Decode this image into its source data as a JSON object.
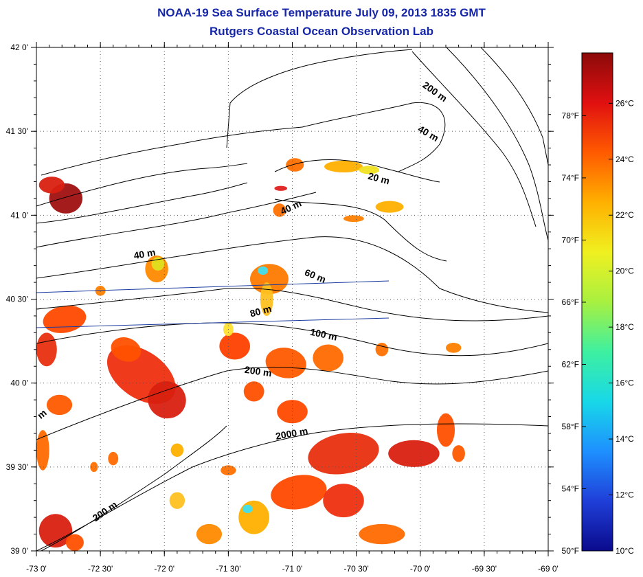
{
  "title": "NOAA-19 Sea Surface Temperature July 09, 2013 1835 GMT",
  "subtitle": "Rutgers Coastal Ocean Observation Lab",
  "axes": {
    "x_ticks": [
      "-73 0'",
      "-72 30'",
      "-72 0'",
      "-71 30'",
      "-71 0'",
      "-70 30'",
      "-70 0'",
      "-69 30'",
      "-69 0'"
    ],
    "y_ticks": [
      "39 0'",
      "39 30'",
      "40 0'",
      "40 30'",
      "41 0'",
      "41 30'",
      "42 0'"
    ],
    "lon_range": [
      -73,
      -69
    ],
    "lat_range": [
      39,
      42
    ]
  },
  "colorbar": {
    "c_labels": [
      "10°C",
      "12°C",
      "14°C",
      "16°C",
      "18°C",
      "20°C",
      "22°C",
      "24°C",
      "26°C"
    ],
    "f_labels": [
      "50°F",
      "54°F",
      "58°F",
      "62°F",
      "66°F",
      "70°F",
      "74°F",
      "78°F"
    ],
    "range_c": [
      10,
      27.8
    ],
    "colors": [
      "#0a0a8c",
      "#1f3fd8",
      "#1e90ff",
      "#18d8e8",
      "#3ef0a0",
      "#a8f040",
      "#f0f020",
      "#ffb000",
      "#ff5a00",
      "#e01010",
      "#8b0a0a"
    ]
  },
  "contour_labels": [
    {
      "text": "200 m",
      "lon": -69.9,
      "lat": 41.72,
      "angle": 35
    },
    {
      "text": "40 m",
      "lon": -69.95,
      "lat": 41.47,
      "angle": 30
    },
    {
      "text": "20 m",
      "lon": -70.33,
      "lat": 41.2,
      "angle": 15
    },
    {
      "text": "40 m",
      "lon": -71.0,
      "lat": 41.03,
      "angle": -25
    },
    {
      "text": "40 m",
      "lon": -72.15,
      "lat": 40.75,
      "angle": -10
    },
    {
      "text": "60 m",
      "lon": -70.83,
      "lat": 40.62,
      "angle": 22
    },
    {
      "text": "80 m",
      "lon": -71.24,
      "lat": 40.41,
      "angle": -15
    },
    {
      "text": "100 m",
      "lon": -70.76,
      "lat": 40.27,
      "angle": 12
    },
    {
      "text": "200 m",
      "lon": -71.27,
      "lat": 40.05,
      "angle": 8
    },
    {
      "text": "2000 m",
      "lon": -71.0,
      "lat": 39.68,
      "angle": -10
    },
    {
      "text": "200 m",
      "lon": -72.45,
      "lat": 39.22,
      "angle": -35
    },
    {
      "text": "m",
      "lon": -72.94,
      "lat": 39.8,
      "angle": -40
    }
  ],
  "sst_patches": [
    {
      "color": "#a01010",
      "lon": -72.77,
      "lat": 41.1,
      "rx": 0.13,
      "ry": 0.09,
      "rot": 0
    },
    {
      "color": "#d82010",
      "lon": -72.88,
      "lat": 41.18,
      "rx": 0.1,
      "ry": 0.05,
      "rot": 0
    },
    {
      "color": "#ff8a00",
      "lon": -72.06,
      "lat": 40.68,
      "rx": 0.09,
      "ry": 0.08,
      "rot": 0
    },
    {
      "color": "#e0e020",
      "lon": -72.05,
      "lat": 40.71,
      "rx": 0.05,
      "ry": 0.04,
      "rot": 0
    },
    {
      "color": "#ff7a00",
      "lon": -71.18,
      "lat": 40.62,
      "rx": 0.15,
      "ry": 0.09,
      "rot": 0
    },
    {
      "color": "#ffc020",
      "lon": -71.2,
      "lat": 40.5,
      "rx": 0.05,
      "ry": 0.1,
      "rot": 0
    },
    {
      "color": "#40e0f0",
      "lon": -71.23,
      "lat": 40.67,
      "rx": 0.04,
      "ry": 0.025,
      "rot": 0
    },
    {
      "color": "#ff7000",
      "lon": -70.98,
      "lat": 41.3,
      "rx": 0.07,
      "ry": 0.04,
      "rot": 0
    },
    {
      "color": "#ffb000",
      "lon": -70.6,
      "lat": 41.29,
      "rx": 0.15,
      "ry": 0.035,
      "rot": 0
    },
    {
      "color": "#f0e020",
      "lon": -70.4,
      "lat": 41.27,
      "rx": 0.08,
      "ry": 0.025,
      "rot": 0
    },
    {
      "color": "#e02020",
      "lon": -71.09,
      "lat": 41.16,
      "rx": 0.05,
      "ry": 0.015,
      "rot": 0
    },
    {
      "color": "#ff7000",
      "lon": -71.1,
      "lat": 41.03,
      "rx": 0.05,
      "ry": 0.04,
      "rot": 0
    },
    {
      "color": "#ffb000",
      "lon": -70.24,
      "lat": 41.05,
      "rx": 0.11,
      "ry": 0.035,
      "rot": 0
    },
    {
      "color": "#ff8000",
      "lon": -70.52,
      "lat": 40.98,
      "rx": 0.08,
      "ry": 0.02,
      "rot": 0
    },
    {
      "color": "#ff4a00",
      "lon": -72.78,
      "lat": 40.38,
      "rx": 0.17,
      "ry": 0.08,
      "rot": -10
    },
    {
      "color": "#e83010",
      "lon": -72.92,
      "lat": 40.2,
      "rx": 0.08,
      "ry": 0.1,
      "rot": 0
    },
    {
      "color": "#ee3010",
      "lon": -72.18,
      "lat": 40.05,
      "rx": 0.3,
      "ry": 0.14,
      "rot": 35
    },
    {
      "color": "#d82010",
      "lon": -71.98,
      "lat": 39.9,
      "rx": 0.15,
      "ry": 0.11,
      "rot": 25
    },
    {
      "color": "#ff5000",
      "lon": -72.3,
      "lat": 40.2,
      "rx": 0.12,
      "ry": 0.07,
      "rot": 20
    },
    {
      "color": "#ff5a00",
      "lon": -72.82,
      "lat": 39.87,
      "rx": 0.1,
      "ry": 0.06,
      "rot": 0
    },
    {
      "color": "#ff6a00",
      "lon": -72.95,
      "lat": 39.6,
      "rx": 0.05,
      "ry": 0.12,
      "rot": 0
    },
    {
      "color": "#ff4000",
      "lon": -71.45,
      "lat": 40.22,
      "rx": 0.12,
      "ry": 0.08,
      "rot": 0
    },
    {
      "color": "#ff5a00",
      "lon": -71.05,
      "lat": 40.12,
      "rx": 0.16,
      "ry": 0.09,
      "rot": 10
    },
    {
      "color": "#ff6a00",
      "lon": -70.72,
      "lat": 40.15,
      "rx": 0.12,
      "ry": 0.08,
      "rot": 0
    },
    {
      "color": "#ff5000",
      "lon": -71.3,
      "lat": 39.95,
      "rx": 0.08,
      "ry": 0.06,
      "rot": 0
    },
    {
      "color": "#ff7000",
      "lon": -70.3,
      "lat": 40.2,
      "rx": 0.05,
      "ry": 0.04,
      "rot": 0
    },
    {
      "color": "#ff8000",
      "lon": -69.74,
      "lat": 40.21,
      "rx": 0.06,
      "ry": 0.03,
      "rot": 0
    },
    {
      "color": "#ff4a00",
      "lon": -71.0,
      "lat": 39.83,
      "rx": 0.12,
      "ry": 0.07,
      "rot": 0
    },
    {
      "color": "#e83010",
      "lon": -70.6,
      "lat": 39.58,
      "rx": 0.28,
      "ry": 0.12,
      "rot": -10
    },
    {
      "color": "#d82010",
      "lon": -70.05,
      "lat": 39.58,
      "rx": 0.2,
      "ry": 0.08,
      "rot": 0
    },
    {
      "color": "#ff5000",
      "lon": -69.8,
      "lat": 39.72,
      "rx": 0.07,
      "ry": 0.1,
      "rot": 0
    },
    {
      "color": "#ff5a00",
      "lon": -69.7,
      "lat": 39.58,
      "rx": 0.05,
      "ry": 0.05,
      "rot": 0
    },
    {
      "color": "#ff4a00",
      "lon": -70.95,
      "lat": 39.35,
      "rx": 0.22,
      "ry": 0.1,
      "rot": -10
    },
    {
      "color": "#ee3010",
      "lon": -70.6,
      "lat": 39.3,
      "rx": 0.16,
      "ry": 0.1,
      "rot": 0
    },
    {
      "color": "#ff6a00",
      "lon": -70.3,
      "lat": 39.1,
      "rx": 0.18,
      "ry": 0.06,
      "rot": 0
    },
    {
      "color": "#ffb000",
      "lon": -71.3,
      "lat": 39.2,
      "rx": 0.12,
      "ry": 0.1,
      "rot": 0
    },
    {
      "color": "#40e0f0",
      "lon": -71.35,
      "lat": 39.25,
      "rx": 0.04,
      "ry": 0.025,
      "rot": 0
    },
    {
      "color": "#ff8a00",
      "lon": -71.65,
      "lat": 39.1,
      "rx": 0.1,
      "ry": 0.06,
      "rot": 0
    },
    {
      "color": "#ffc020",
      "lon": -71.9,
      "lat": 39.3,
      "rx": 0.06,
      "ry": 0.05,
      "rot": 0
    },
    {
      "color": "#ff7000",
      "lon": -71.5,
      "lat": 39.48,
      "rx": 0.06,
      "ry": 0.03,
      "rot": 0
    },
    {
      "color": "#d82010",
      "lon": -72.85,
      "lat": 39.12,
      "rx": 0.13,
      "ry": 0.1,
      "rot": 0
    },
    {
      "color": "#ff5000",
      "lon": -72.7,
      "lat": 39.05,
      "rx": 0.07,
      "ry": 0.05,
      "rot": 0
    },
    {
      "color": "#ff6a00",
      "lon": -72.4,
      "lat": 39.55,
      "rx": 0.04,
      "ry": 0.04,
      "rot": 0
    },
    {
      "color": "#ff7000",
      "lon": -72.55,
      "lat": 39.5,
      "rx": 0.03,
      "ry": 0.03,
      "rot": 0
    },
    {
      "color": "#ffb000",
      "lon": -71.9,
      "lat": 39.6,
      "rx": 0.05,
      "ry": 0.04,
      "rot": 0
    },
    {
      "color": "#ffe030",
      "lon": -71.5,
      "lat": 40.32,
      "rx": 0.04,
      "ry": 0.04,
      "rot": 0
    },
    {
      "color": "#ff8000",
      "lon": -72.5,
      "lat": 40.55,
      "rx": 0.04,
      "ry": 0.03,
      "rot": 0
    }
  ]
}
